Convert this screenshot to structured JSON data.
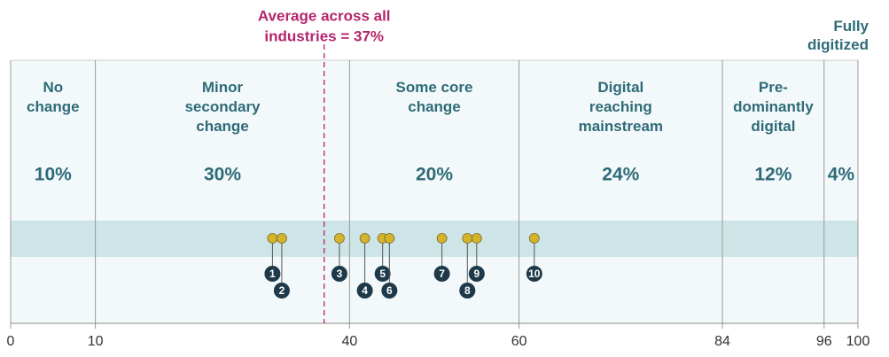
{
  "chart_data": {
    "type": "segments",
    "categories": [
      [
        "No",
        "change"
      ],
      [
        "Minor",
        "secondary",
        "change"
      ],
      [
        "Some core",
        "change"
      ],
      [
        "Digital",
        "reaching",
        "mainstream"
      ],
      [
        "Pre-",
        "dominantly",
        "digital"
      ],
      [
        "Fully",
        "digitized"
      ]
    ],
    "values": [
      10,
      30,
      20,
      24,
      12,
      4
    ],
    "value_labels": [
      "10%",
      "30%",
      "20%",
      "24%",
      "12%",
      "4%"
    ],
    "xlim": [
      0,
      100
    ],
    "xticks": [
      0,
      10,
      40,
      60,
      84,
      96,
      100
    ],
    "average": 37,
    "annotation": [
      "Average across all",
      "industries = 37%"
    ],
    "points": {
      "labels": [
        "1",
        "2",
        "3",
        "4",
        "5",
        "6",
        "7",
        "8",
        "9",
        "10"
      ],
      "values": [
        30.9,
        32.0,
        38.8,
        41.8,
        43.9,
        44.7,
        50.9,
        53.9,
        55.0,
        61.8
      ],
      "color": "#d4b42c"
    },
    "color": "#f3f9fa",
    "band_color": "#cde5e7",
    "accent_color": "#b5246c",
    "text_color": "#2e6b78"
  }
}
